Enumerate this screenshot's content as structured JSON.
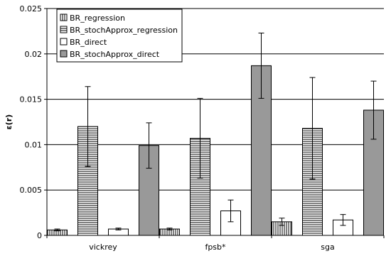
{
  "chart_data": {
    "type": "bar",
    "title": "",
    "xlabel": "",
    "ylabel": "ε(r)",
    "ylim": [
      0,
      0.025
    ],
    "yticks": [
      "0",
      "0.005",
      "0.01",
      "0.015",
      "0.02",
      "0.025"
    ],
    "grid": "horizontal",
    "legend_position": "top-left",
    "categories": [
      "vickrey",
      "fpsb*",
      "sga"
    ],
    "series": [
      {
        "name": "BR_regression",
        "pattern": "vertical-stripes",
        "values": [
          0.0006,
          0.0007,
          0.0015
        ],
        "errors": [
          0.0001,
          0.0001,
          0.0004
        ]
      },
      {
        "name": "BR_stochApprox_regression",
        "pattern": "horizontal-stripes",
        "values": [
          0.012,
          0.0107,
          0.0118
        ],
        "errors": [
          0.0044,
          0.0044,
          0.0056
        ]
      },
      {
        "name": "BR_direct",
        "pattern": "white",
        "values": [
          0.0007,
          0.0027,
          0.0017
        ],
        "errors": [
          0.0001,
          0.0012,
          0.0006
        ]
      },
      {
        "name": "BR_stochApprox_direct",
        "pattern": "gray",
        "values": [
          0.0099,
          0.0187,
          0.0138
        ],
        "errors": [
          0.0025,
          0.0036,
          0.0032
        ]
      }
    ],
    "colors": {
      "gray_fill": "#999999",
      "axis": "#000000",
      "grid": "#000000"
    }
  }
}
